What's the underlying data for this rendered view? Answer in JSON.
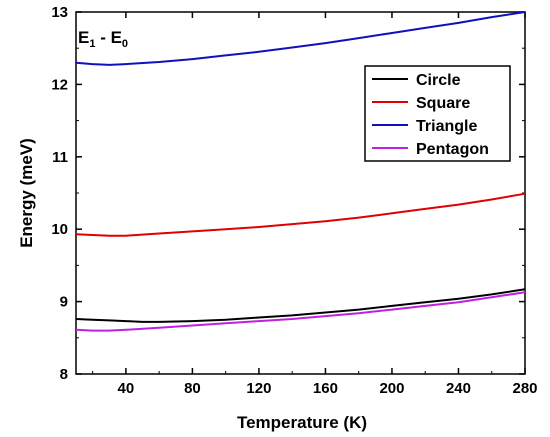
{
  "chart_data": {
    "type": "line",
    "xlabel": "Temperature (K)",
    "ylabel": "Energy (meV)",
    "xlim": [
      10,
      280
    ],
    "ylim": [
      8,
      13
    ],
    "xticks": [
      40,
      80,
      120,
      160,
      200,
      240,
      280
    ],
    "yticks": [
      8,
      9,
      10,
      11,
      12,
      13
    ],
    "grid": false,
    "legend_position": "top-right",
    "annotation": {
      "main": "E",
      "sub1": "1",
      "dash": " - E",
      "sub2": "0"
    },
    "series": [
      {
        "name": "Circle",
        "color": "#000000",
        "x": [
          10,
          20,
          30,
          40,
          50,
          60,
          80,
          100,
          120,
          140,
          160,
          180,
          200,
          220,
          240,
          260,
          280
        ],
        "y": [
          8.76,
          8.75,
          8.74,
          8.73,
          8.72,
          8.72,
          8.73,
          8.75,
          8.78,
          8.81,
          8.85,
          8.89,
          8.94,
          8.99,
          9.04,
          9.1,
          9.17
        ]
      },
      {
        "name": "Square",
        "color": "#e00000",
        "x": [
          10,
          20,
          30,
          40,
          60,
          80,
          100,
          120,
          140,
          160,
          180,
          200,
          220,
          240,
          260,
          280
        ],
        "y": [
          9.93,
          9.92,
          9.91,
          9.91,
          9.94,
          9.97,
          10.0,
          10.03,
          10.07,
          10.11,
          10.16,
          10.22,
          10.28,
          10.34,
          10.41,
          10.49
        ]
      },
      {
        "name": "Triangle",
        "color": "#1010c0",
        "x": [
          10,
          20,
          30,
          40,
          60,
          80,
          100,
          120,
          140,
          160,
          180,
          200,
          220,
          240,
          260,
          280
        ],
        "y": [
          12.3,
          12.28,
          12.27,
          12.28,
          12.31,
          12.35,
          12.4,
          12.45,
          12.51,
          12.57,
          12.64,
          12.71,
          12.78,
          12.85,
          12.93,
          13.0
        ]
      },
      {
        "name": "Pentagon",
        "color": "#c020e0",
        "x": [
          10,
          20,
          30,
          40,
          60,
          80,
          100,
          120,
          140,
          160,
          180,
          200,
          220,
          240,
          260,
          280
        ],
        "y": [
          8.61,
          8.6,
          8.6,
          8.61,
          8.64,
          8.67,
          8.7,
          8.73,
          8.76,
          8.8,
          8.84,
          8.89,
          8.94,
          8.99,
          9.06,
          9.13
        ]
      }
    ]
  }
}
